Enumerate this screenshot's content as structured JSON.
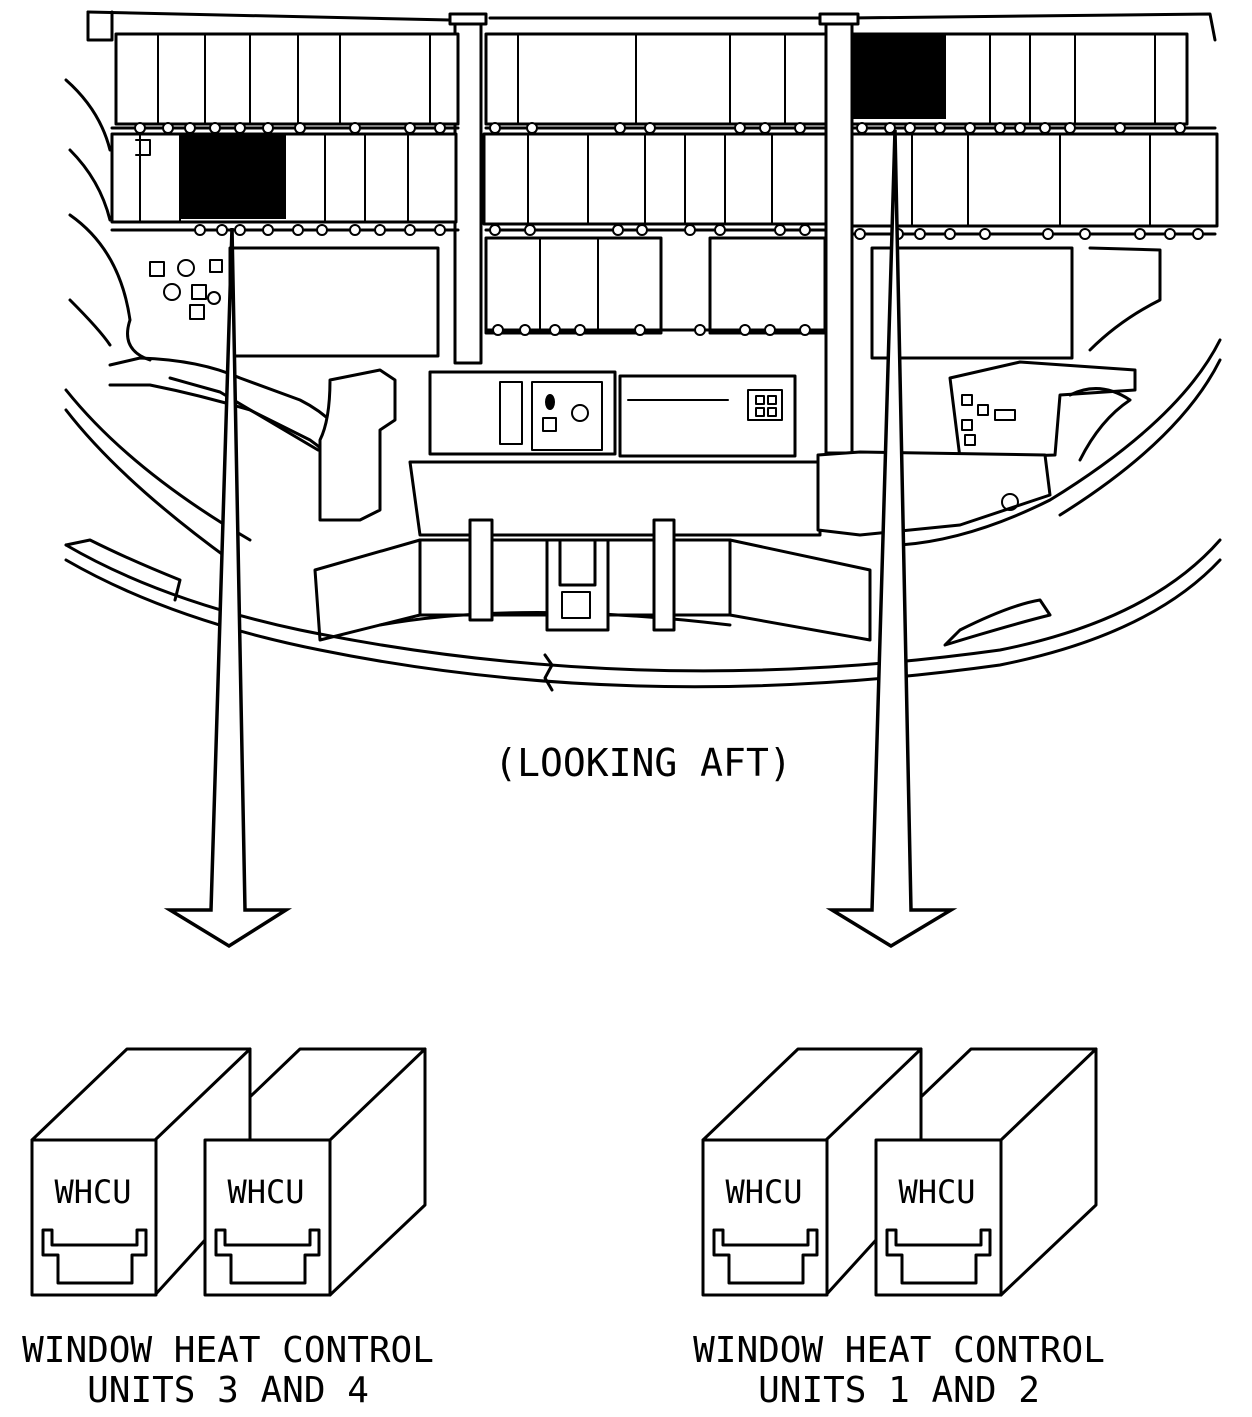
{
  "view_label": "(LOOKING AFT)",
  "highlight_color": "#000000",
  "groups": [
    {
      "id": "whcu-3-4",
      "units": [
        {
          "label": "WHCU"
        },
        {
          "label": "WHCU"
        }
      ],
      "caption_line1": "WINDOW HEAT CONTROL",
      "caption_line2": "UNITS 3 AND 4"
    },
    {
      "id": "whcu-1-2",
      "units": [
        {
          "label": "WHCU"
        },
        {
          "label": "WHCU"
        }
      ],
      "caption_line1": "WINDOW HEAT CONTROL",
      "caption_line2": "UNITS 1 AND 2"
    }
  ]
}
